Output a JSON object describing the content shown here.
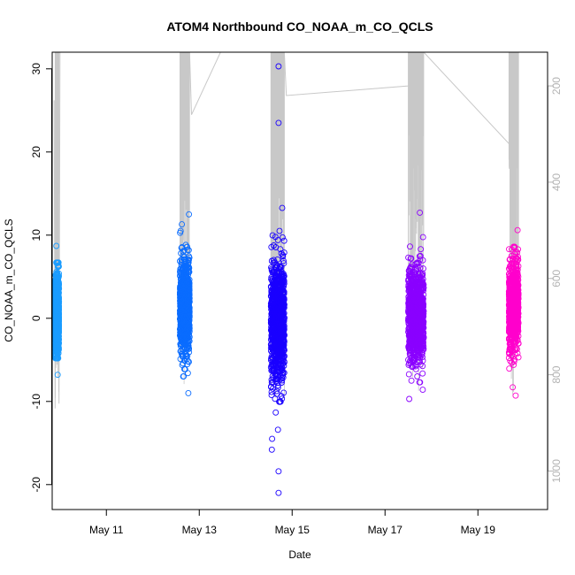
{
  "chart_data": {
    "type": "scatter",
    "title": "ATOM4 Northbound CO_NOAA_m_CO_QCLS",
    "xlabel": "Date",
    "ylabel": "CO_NOAA_m_CO_QCLS",
    "xlim": [
      "2018-05-09T20:00",
      "2018-05-20T12:00"
    ],
    "ylim": [
      -23,
      32
    ],
    "y_ticks": [
      -20,
      -10,
      0,
      10,
      20,
      30
    ],
    "x_ticks": [
      {
        "label": "May 11",
        "date": "2018-05-11"
      },
      {
        "label": "May 13",
        "date": "2018-05-13"
      },
      {
        "label": "May 15",
        "date": "2018-05-15"
      },
      {
        "label": "May 17",
        "date": "2018-05-17"
      },
      {
        "label": "May 19",
        "date": "2018-05-19"
      }
    ],
    "secondary_axis": {
      "position": "right",
      "color": "#b3b3b3",
      "inverted": true,
      "ylim": [
        1080,
        130
      ],
      "ticks": [
        200,
        400,
        600,
        800,
        1000
      ]
    },
    "grid": false,
    "legend": "none",
    "marker": "open-circle",
    "series": [
      {
        "color": "#1a9cff",
        "x_range": [
          "2018-05-09T21:30",
          "2018-05-09T23:30"
        ],
        "y_center": 0.5,
        "y_spread": 2.4,
        "y_min": -6.8,
        "y_max": 8.7,
        "outliers": [
          [
            "2018-05-09T22:10",
            8.7
          ],
          [
            "2018-05-09T22:50",
            -6.8
          ]
        ]
      },
      {
        "color": "#0a6cff",
        "x_range": [
          "2018-05-12T14:00",
          "2018-05-12T19:00"
        ],
        "y_center": 1.5,
        "y_spread": 2.7,
        "y_min": -9.0,
        "y_max": 12.5,
        "outliers": [
          [
            "2018-05-12T18:40",
            12.5
          ],
          [
            "2018-05-12T18:20",
            -9.0
          ],
          [
            "2018-05-12T15:00",
            11.3
          ]
        ]
      },
      {
        "color": "#1a00ff",
        "x_range": [
          "2018-05-14T13:00",
          "2018-05-14T20:00"
        ],
        "y_center": -0.5,
        "y_spread": 3.6,
        "y_min": -21.0,
        "y_max": 30.3,
        "outliers": [
          [
            "2018-05-14T17:00",
            30.3
          ],
          [
            "2018-05-14T17:00",
            23.5
          ],
          [
            "2018-05-14T17:00",
            -18.4
          ],
          [
            "2018-05-14T17:00",
            -21.0
          ],
          [
            "2018-05-14T13:30",
            -15.8
          ],
          [
            "2018-05-14T13:40",
            -14.5
          ],
          [
            "2018-05-14T16:40",
            -13.4
          ],
          [
            "2018-05-14T17:30",
            10.5
          ]
        ]
      },
      {
        "color": "#8a00ff",
        "x_range": [
          "2018-05-17T12:00",
          "2018-05-17T20:00"
        ],
        "y_center": 0.5,
        "y_spread": 2.8,
        "y_min": -9.7,
        "y_max": 12.7,
        "outliers": [
          [
            "2018-05-17T18:00",
            12.7
          ],
          [
            "2018-05-17T12:30",
            -9.7
          ],
          [
            "2018-05-17T19:30",
            -8.6
          ]
        ]
      },
      {
        "color": "#ff00cc",
        "x_range": [
          "2018-05-19T16:00",
          "2018-05-19T21:00"
        ],
        "y_center": 1.5,
        "y_spread": 2.5,
        "y_min": -9.3,
        "y_max": 10.6,
        "outliers": [
          [
            "2018-05-19T20:30",
            10.6
          ],
          [
            "2018-05-19T19:30",
            -9.3
          ],
          [
            "2018-05-19T18:00",
            -8.3
          ]
        ]
      }
    ],
    "pressure_trace": {
      "color": "#c8c8c8",
      "points": [
        [
          "2018-05-09T21:00",
          230
        ],
        [
          "2018-05-09T21:30",
          870
        ],
        [
          "2018-05-09T22:20",
          130
        ],
        [
          "2018-05-09T23:30",
          860
        ],
        [
          "2018-05-10T00:00",
          130
        ],
        [
          "2018-05-12T14:00",
          130
        ],
        [
          "2018-05-12T19:00",
          130
        ],
        [
          "2018-05-12T20:00",
          260
        ],
        [
          "2018-05-13T11:00",
          130
        ],
        [
          "2018-05-14T13:00",
          130
        ],
        [
          "2018-05-14T20:00",
          135
        ],
        [
          "2018-05-14T21:00",
          220
        ],
        [
          "2018-05-17T12:00",
          200
        ],
        [
          "2018-05-17T20:00",
          130
        ],
        [
          "2018-05-19T16:00",
          320
        ],
        [
          "2018-05-19T21:00",
          130
        ]
      ]
    }
  }
}
